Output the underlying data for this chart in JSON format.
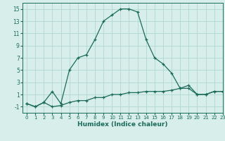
{
  "xlabel": "Humidex (Indice chaleur)",
  "background_color": "#d8eeea",
  "grid_color": "#b0d8d0",
  "line_color": "#1a6b5a",
  "x_upper": [
    0,
    1,
    2,
    3,
    4,
    5,
    6,
    7,
    8,
    9,
    10,
    11,
    12,
    13,
    14,
    15,
    16,
    17,
    18,
    19,
    20,
    21,
    22,
    23
  ],
  "y_upper": [
    -0.5,
    -1,
    -0.3,
    1.5,
    -0.5,
    5,
    7,
    7.5,
    10,
    13,
    14,
    15,
    15,
    14.5,
    10,
    7,
    6,
    4.5,
    2,
    2.5,
    1,
    1,
    1.5,
    1.5
  ],
  "x_lower": [
    0,
    1,
    2,
    3,
    4,
    5,
    6,
    7,
    8,
    9,
    10,
    11,
    12,
    13,
    14,
    15,
    16,
    17,
    18,
    19,
    20,
    21,
    22,
    23
  ],
  "y_lower": [
    -0.5,
    -1,
    -0.3,
    -1,
    -0.8,
    -0.3,
    0,
    0,
    0.5,
    0.5,
    1,
    1,
    1.3,
    1.3,
    1.5,
    1.5,
    1.5,
    1.7,
    2,
    2,
    1,
    1,
    1.5,
    1.5
  ],
  "xlim": [
    -0.5,
    23
  ],
  "ylim": [
    -2,
    16
  ],
  "yticks": [
    -1,
    1,
    3,
    5,
    7,
    9,
    11,
    13,
    15
  ],
  "xticks": [
    0,
    1,
    2,
    3,
    4,
    5,
    6,
    7,
    8,
    9,
    10,
    11,
    12,
    13,
    14,
    15,
    16,
    17,
    18,
    19,
    20,
    21,
    22,
    23
  ]
}
